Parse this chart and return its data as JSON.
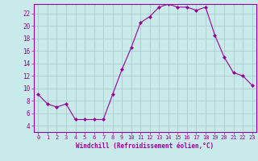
{
  "hours": [
    0,
    1,
    2,
    3,
    4,
    5,
    6,
    7,
    8,
    9,
    10,
    11,
    12,
    13,
    14,
    15,
    16,
    17,
    18,
    19,
    20,
    21,
    22,
    23
  ],
  "values": [
    9.0,
    7.5,
    7.0,
    7.5,
    5.0,
    5.0,
    5.0,
    5.0,
    9.0,
    13.0,
    16.5,
    20.5,
    21.5,
    23.0,
    23.5,
    23.0,
    23.0,
    22.5,
    23.0,
    18.5,
    15.0,
    12.5,
    12.0,
    10.5
  ],
  "line_color": "#990099",
  "marker": "D",
  "marker_size": 2.0,
  "bg_color": "#c8eaea",
  "grid_color": "#aacccc",
  "xlabel": "Windchill (Refroidissement éolien,°C)",
  "xlim": [
    -0.5,
    23.5
  ],
  "ylim": [
    3.0,
    23.5
  ],
  "yticks": [
    4,
    6,
    8,
    10,
    12,
    14,
    16,
    18,
    20,
    22
  ],
  "tick_color": "#990099",
  "label_color": "#990099",
  "tick_fontsize": 5.0,
  "xlabel_fontsize": 5.5
}
